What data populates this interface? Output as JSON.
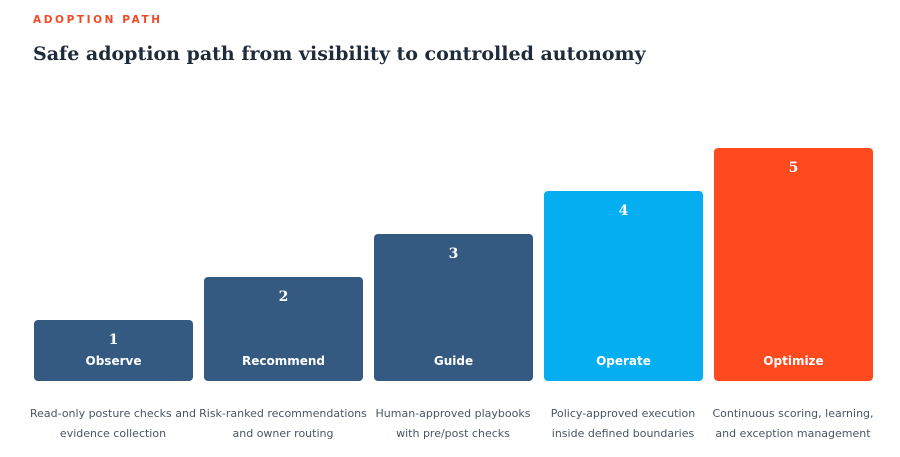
{
  "header": {
    "eyebrow": "ADOPTION PATH",
    "title": "Safe adoption path from visibility to controlled autonomy"
  },
  "colors": {
    "steps_1_3": "#355a82",
    "step_4": "#04aef0",
    "step_5": "#ff4a1f",
    "accent": "#f04a24"
  },
  "steps": [
    {
      "number": "1",
      "label": "Observe",
      "desc_line1": "Read-only posture checks and",
      "desc_line2": "evidence collection"
    },
    {
      "number": "2",
      "label": "Recommend",
      "desc_line1": "Risk-ranked recommendations",
      "desc_line2": "and owner routing"
    },
    {
      "number": "3",
      "label": "Guide",
      "desc_line1": "Human-approved playbooks",
      "desc_line2": "with pre/post checks"
    },
    {
      "number": "4",
      "label": "Operate",
      "desc_line1": "Policy-approved execution",
      "desc_line2": "inside defined boundaries"
    },
    {
      "number": "5",
      "label": "Optimize",
      "desc_line1": "Continuous scoring, learning,",
      "desc_line2": "and exception management"
    }
  ]
}
